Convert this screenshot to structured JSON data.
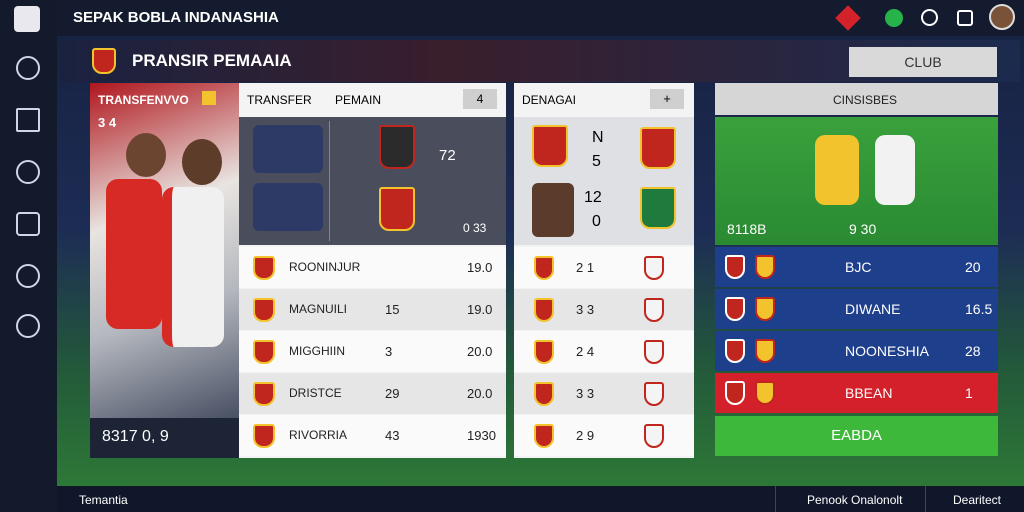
{
  "header": {
    "title": "SEPAK BOBLA INDANASHIA"
  },
  "page": {
    "title": "PRANSIR PEMAAIA",
    "club_button": "CLUB"
  },
  "featured": {
    "label": "TRANSFENVVO",
    "sublabel": "3 4",
    "footer": "8317 0, 9"
  },
  "transfer": {
    "tabs": [
      "TRANSFER",
      "PEMAIN"
    ],
    "button": "4",
    "score": "72",
    "badge_value": "0 33",
    "rows": [
      {
        "name": "ROONINJUR",
        "price": "19.0"
      },
      {
        "name": "MAGNUILI",
        "stat": "15",
        "price": "19.0"
      },
      {
        "name": "MIGGHIIN",
        "stat": "3",
        "price": "20.0"
      },
      {
        "name": "DRISTCE",
        "stat": "29",
        "price": "20.0"
      },
      {
        "name": "RIVORRIA",
        "stat": "43",
        "price": "1930"
      }
    ]
  },
  "match": {
    "title": "DENAGAI",
    "button": "+",
    "scores": [
      "N",
      "5",
      "12",
      "0"
    ],
    "rows": [
      "2 1",
      "3 3",
      "2 4",
      "3 3",
      "2 9"
    ]
  },
  "standings": {
    "title": "CINSISBES",
    "banner_left": "8118B",
    "banner_right": "9 30",
    "rows": [
      {
        "name": "BJC",
        "value": "20"
      },
      {
        "name": "DIWANE",
        "value": "16.5"
      },
      {
        "name": "NOONESHIA",
        "value": "28"
      },
      {
        "name": "BBEAN",
        "value": "1"
      }
    ],
    "button": "EABDA"
  },
  "footer": {
    "left": "Temantia",
    "center": "Penook Onalonolt",
    "right": "Dearitect"
  }
}
